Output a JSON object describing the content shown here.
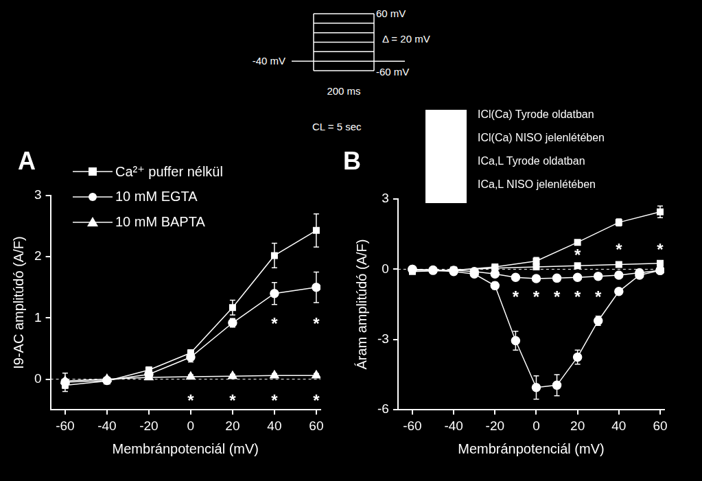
{
  "protocol": {
    "levels": [
      -60,
      -40,
      -20,
      0,
      20,
      40,
      60
    ],
    "holding": -40,
    "labels": {
      "top": "60 mV",
      "step": "Δ = 20 mV",
      "holding": "-40 mV",
      "bottom": "-60 mV",
      "duration": "200 ms",
      "cycle": "CL = 5 sec"
    }
  },
  "chart_data": [
    {
      "type": "line",
      "title": "A",
      "x_label": "Membránpotenciál (mV)",
      "y_label": "I9-AC amplitúdó (A/F)",
      "xlim": [
        -67,
        62
      ],
      "ylim": [
        -0.5,
        3
      ],
      "xticks": [
        -60,
        -40,
        -20,
        0,
        20,
        40,
        60
      ],
      "yticks": [
        0,
        1,
        2,
        3
      ],
      "grid": false,
      "legend": "top-left",
      "x": [
        -60,
        -40,
        -20,
        0,
        20,
        40,
        60
      ],
      "series": [
        {
          "name": "Ca²⁺ puffer nélkül",
          "color": "#ffffff",
          "marker": "square",
          "values": [
            -0.1,
            -0.03,
            0.15,
            0.43,
            1.17,
            2.02,
            2.43
          ],
          "errors": [
            0.05,
            0.03,
            0.05,
            0.05,
            0.12,
            0.2,
            0.27
          ]
        },
        {
          "name": "10 mM EGTA",
          "color": "#ffffff",
          "marker": "circle",
          "values": [
            -0.05,
            -0.02,
            0.08,
            0.36,
            0.92,
            1.4,
            1.5
          ],
          "errors": [
            0.15,
            0.03,
            0.04,
            0.08,
            0.07,
            0.18,
            0.25
          ]
        },
        {
          "name": "10 mM BAPTA",
          "color": "#ffffff",
          "marker": "triangle",
          "values": [
            -0.03,
            0.0,
            0.03,
            0.04,
            0.05,
            0.06,
            0.06
          ],
          "errors": [
            0.03,
            0.03,
            0.03,
            0.03,
            0.03,
            0.03,
            0.03
          ]
        }
      ],
      "annotations": [
        {
          "text": "*",
          "x": 40,
          "y": 0.95
        },
        {
          "text": "*",
          "x": 60,
          "y": 0.95
        },
        {
          "text": "*",
          "x": 0,
          "y": -0.3
        },
        {
          "text": "*",
          "x": 20,
          "y": -0.3
        },
        {
          "text": "*",
          "x": 40,
          "y": -0.3
        },
        {
          "text": "*",
          "x": 60,
          "y": -0.3
        }
      ]
    },
    {
      "type": "line",
      "title": "B",
      "x_label": "Membránpotenciál (mV)",
      "y_label": "Áram amplitúdó (A/F)",
      "xlim": [
        -67,
        62
      ],
      "ylim": [
        -6,
        3
      ],
      "xticks": [
        -60,
        -40,
        -20,
        0,
        20,
        40,
        60
      ],
      "yticks": [
        -6,
        -3,
        0,
        3
      ],
      "grid": false,
      "legend": "top-right",
      "series": [
        {
          "name": "ICl(Ca) Tyrode oldatban",
          "color": "#ffffff",
          "marker": "square",
          "x": [
            -60,
            -40,
            -20,
            0,
            20,
            40,
            60
          ],
          "values": [
            -0.1,
            -0.05,
            0.1,
            0.35,
            1.15,
            2.0,
            2.45
          ],
          "errors": [
            0.1,
            0.05,
            0.1,
            0.15,
            0.1,
            0.15,
            0.25
          ]
        },
        {
          "name": "ICl(Ca) NISO jelenlétében",
          "color": "#ffffff",
          "marker": "square",
          "x": [
            -60,
            -40,
            -20,
            0,
            20,
            40,
            60
          ],
          "values": [
            -0.05,
            -0.03,
            0.05,
            0.1,
            0.15,
            0.2,
            0.25
          ],
          "errors": [
            0.05,
            0.05,
            0.05,
            0.1,
            0.05,
            0.05,
            0.05
          ]
        },
        {
          "name": "ICa,L Tyrode oldatban",
          "color": "#ffffff",
          "marker": "circle",
          "x": [
            -60,
            -50,
            -40,
            -30,
            -20,
            -10,
            0,
            10,
            20,
            30,
            40,
            50,
            60
          ],
          "values": [
            0,
            -0.05,
            -0.1,
            -0.2,
            -0.7,
            -3.05,
            -5.05,
            -4.95,
            -3.75,
            -2.2,
            -0.95,
            -0.25,
            -0.05
          ],
          "errors": [
            0.05,
            0.05,
            0.05,
            0.1,
            0.15,
            0.4,
            0.5,
            0.45,
            0.3,
            0.2,
            0.1,
            0.1,
            0.05
          ]
        },
        {
          "name": "ICa,L NISO jelenlétében",
          "color": "#ffffff",
          "marker": "circle",
          "x": [
            -60,
            -50,
            -40,
            -30,
            -20,
            -10,
            0,
            10,
            20,
            30,
            40,
            50,
            60
          ],
          "values": [
            0,
            -0.03,
            -0.05,
            -0.1,
            -0.2,
            -0.35,
            -0.4,
            -0.38,
            -0.35,
            -0.3,
            -0.25,
            -0.15,
            -0.05
          ],
          "errors": [
            0.03,
            0.03,
            0.05,
            0.05,
            0.05,
            0.05,
            0.08,
            0.05,
            0.05,
            0.05,
            0.05,
            0.05,
            0.05
          ]
        }
      ],
      "annotations": [
        {
          "text": "*",
          "x": 20,
          "y": 0.72
        },
        {
          "text": "*",
          "x": 40,
          "y": 0.98
        },
        {
          "text": "*",
          "x": 60,
          "y": 0.98
        },
        {
          "text": "*",
          "x": -10,
          "y": -1.05
        },
        {
          "text": "*",
          "x": 0,
          "y": -1.05
        },
        {
          "text": "*",
          "x": 10,
          "y": -1.05
        },
        {
          "text": "*",
          "x": 20,
          "y": -1.05
        },
        {
          "text": "*",
          "x": 30,
          "y": -1.05
        }
      ]
    }
  ]
}
